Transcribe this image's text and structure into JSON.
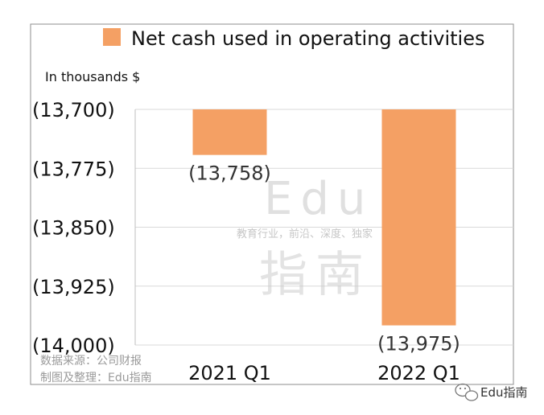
{
  "chart_data": {
    "type": "bar",
    "categories": [
      "2021 Q1",
      "2022 Q1"
    ],
    "series": [
      {
        "name": "Net cash used in operating activities",
        "values": [
          -13758,
          -13975
        ],
        "color": "#f4a064"
      }
    ],
    "data_labels": [
      "(13,758)",
      "(13,975)"
    ],
    "y_ticks": [
      -13700,
      -13775,
      -13850,
      -13925,
      -14000
    ],
    "y_tick_labels": [
      "(13,700)",
      "(13,775)",
      "(13,850)",
      "(13,925)",
      "(14,000)"
    ],
    "ylim": [
      -14000,
      -13700
    ],
    "y_inverted_from_top": true,
    "unit_label": "In thousands $",
    "legend_position": "top",
    "grid": true
  },
  "watermark": {
    "brand_latin": "Edu",
    "tagline": "教育行业，前沿、深度、独家",
    "brand_cn": "指南"
  },
  "source": {
    "line1": "数据来源：公司财报",
    "line2": "制图及整理：Edu指南"
  },
  "corner_brand": {
    "icon": "wechat-icon",
    "text": "Edu指南"
  }
}
